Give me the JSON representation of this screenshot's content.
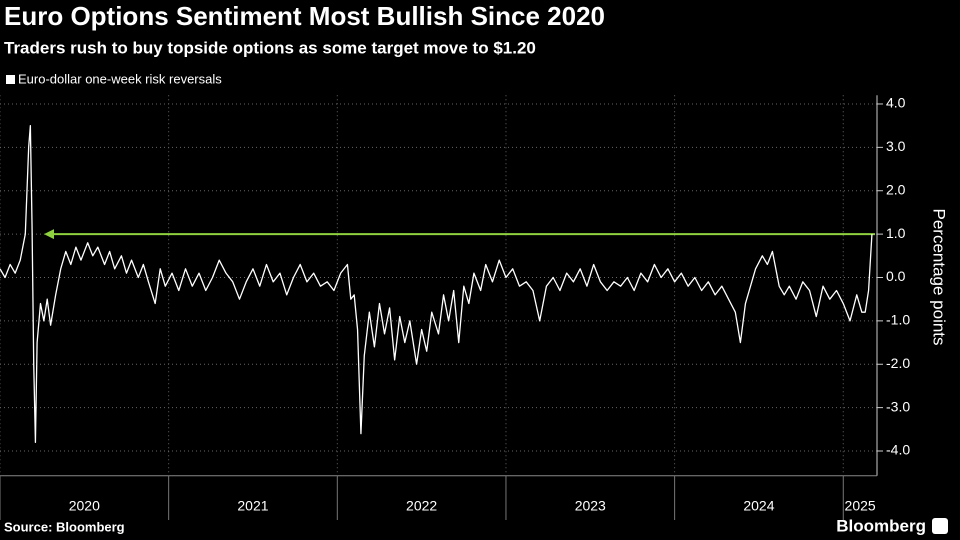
{
  "chart_data": {
    "type": "line",
    "title": "Euro Options Sentiment Most Bullish Since 2020",
    "subtitle": "Traders rush to buy topside options as some target move to $1.20",
    "y_label": "Percentage points",
    "source": "Source: Bloomberg",
    "brand": "Bloomberg",
    "grid": true,
    "reference_line": {
      "value": 1.0,
      "color": "#8fd13f"
    },
    "xlim": [
      2020,
      2025.2
    ],
    "xticks": [
      {
        "value": 2020,
        "label": "2020"
      },
      {
        "value": 2021,
        "label": "2021"
      },
      {
        "value": 2022,
        "label": "2022"
      },
      {
        "value": 2023,
        "label": "2023"
      },
      {
        "value": 2024,
        "label": "2024"
      },
      {
        "value": 2025,
        "label": "2025"
      }
    ],
    "ylim": [
      -4.5,
      4.2
    ],
    "yticks": [
      {
        "value": 4,
        "label": "4.0"
      },
      {
        "value": 3,
        "label": "3.0"
      },
      {
        "value": 2,
        "label": "2.0"
      },
      {
        "value": 1,
        "label": "1.0"
      },
      {
        "value": 0,
        "label": "0.0"
      },
      {
        "value": -1,
        "label": "-1.0"
      },
      {
        "value": -2,
        "label": "-2.0"
      },
      {
        "value": -3,
        "label": "-3.0"
      },
      {
        "value": -4,
        "label": "-4.0"
      }
    ],
    "x": [
      2020.0,
      2020.03,
      2020.06,
      2020.09,
      2020.12,
      2020.15,
      2020.17,
      2020.18,
      2020.19,
      2020.2,
      2020.21,
      2020.22,
      2020.24,
      2020.26,
      2020.28,
      2020.3,
      2020.33,
      2020.36,
      2020.39,
      2020.42,
      2020.45,
      2020.48,
      2020.52,
      2020.55,
      2020.58,
      2020.62,
      2020.65,
      2020.68,
      2020.72,
      2020.75,
      2020.78,
      2020.82,
      2020.85,
      2020.88,
      2020.92,
      2020.95,
      2020.98,
      2021.02,
      2021.06,
      2021.1,
      2021.14,
      2021.18,
      2021.22,
      2021.26,
      2021.3,
      2021.34,
      2021.38,
      2021.42,
      2021.46,
      2021.5,
      2021.54,
      2021.58,
      2021.62,
      2021.66,
      2021.7,
      2021.74,
      2021.78,
      2021.82,
      2021.86,
      2021.9,
      2021.94,
      2021.98,
      2022.02,
      2022.06,
      2022.08,
      2022.1,
      2022.12,
      2022.14,
      2022.16,
      2022.19,
      2022.22,
      2022.25,
      2022.28,
      2022.31,
      2022.34,
      2022.37,
      2022.4,
      2022.43,
      2022.47,
      2022.5,
      2022.53,
      2022.56,
      2022.6,
      2022.63,
      2022.66,
      2022.69,
      2022.72,
      2022.75,
      2022.78,
      2022.81,
      2022.85,
      2022.88,
      2022.92,
      2022.96,
      2023.0,
      2023.04,
      2023.08,
      2023.12,
      2023.16,
      2023.2,
      2023.24,
      2023.28,
      2023.32,
      2023.36,
      2023.4,
      2023.44,
      2023.48,
      2023.52,
      2023.56,
      2023.6,
      2023.64,
      2023.68,
      2023.72,
      2023.76,
      2023.8,
      2023.84,
      2023.88,
      2023.92,
      2023.96,
      2024.0,
      2024.04,
      2024.08,
      2024.12,
      2024.16,
      2024.2,
      2024.24,
      2024.28,
      2024.32,
      2024.36,
      2024.39,
      2024.42,
      2024.45,
      2024.48,
      2024.52,
      2024.55,
      2024.58,
      2024.62,
      2024.65,
      2024.68,
      2024.72,
      2024.76,
      2024.8,
      2024.84,
      2024.88,
      2024.92,
      2024.96,
      2025.0,
      2025.04,
      2025.08,
      2025.11,
      2025.13,
      2025.15,
      2025.17
    ],
    "series": [
      {
        "name": "Euro-dollar one-week risk reversals",
        "color": "#ffffff",
        "values": [
          0.2,
          0.0,
          0.3,
          0.1,
          0.4,
          1.0,
          3.0,
          3.5,
          1.2,
          -2.0,
          -3.8,
          -1.5,
          -0.6,
          -1.0,
          -0.5,
          -1.1,
          -0.4,
          0.2,
          0.6,
          0.3,
          0.7,
          0.4,
          0.8,
          0.5,
          0.7,
          0.3,
          0.6,
          0.2,
          0.5,
          0.1,
          0.4,
          0.0,
          0.3,
          -0.1,
          -0.6,
          0.2,
          -0.2,
          0.1,
          -0.3,
          0.2,
          -0.2,
          0.1,
          -0.3,
          0.0,
          0.4,
          0.1,
          -0.1,
          -0.5,
          -0.1,
          0.2,
          -0.2,
          0.3,
          -0.1,
          0.1,
          -0.4,
          0.0,
          0.3,
          -0.1,
          0.1,
          -0.2,
          -0.1,
          -0.3,
          0.1,
          0.3,
          -0.5,
          -0.4,
          -1.2,
          -3.6,
          -1.8,
          -0.8,
          -1.6,
          -0.6,
          -1.3,
          -0.7,
          -1.9,
          -0.9,
          -1.5,
          -1.0,
          -2.0,
          -1.2,
          -1.7,
          -0.8,
          -1.3,
          -0.4,
          -1.0,
          -0.3,
          -1.5,
          -0.2,
          -0.6,
          0.1,
          -0.3,
          0.3,
          -0.1,
          0.4,
          0.0,
          0.2,
          -0.2,
          -0.1,
          -0.3,
          -1.0,
          -0.2,
          0.0,
          -0.3,
          0.1,
          -0.1,
          0.2,
          -0.2,
          0.3,
          -0.1,
          -0.3,
          -0.1,
          -0.2,
          0.0,
          -0.3,
          0.1,
          -0.1,
          0.3,
          0.0,
          0.2,
          -0.1,
          0.1,
          -0.2,
          0.0,
          -0.3,
          -0.1,
          -0.4,
          -0.2,
          -0.5,
          -0.8,
          -1.5,
          -0.6,
          -0.2,
          0.2,
          0.5,
          0.3,
          0.6,
          -0.2,
          -0.4,
          -0.2,
          -0.5,
          -0.1,
          -0.3,
          -0.9,
          -0.2,
          -0.5,
          -0.3,
          -0.6,
          -1.0,
          -0.4,
          -0.8,
          -0.8,
          -0.3,
          1.0
        ]
      }
    ]
  }
}
